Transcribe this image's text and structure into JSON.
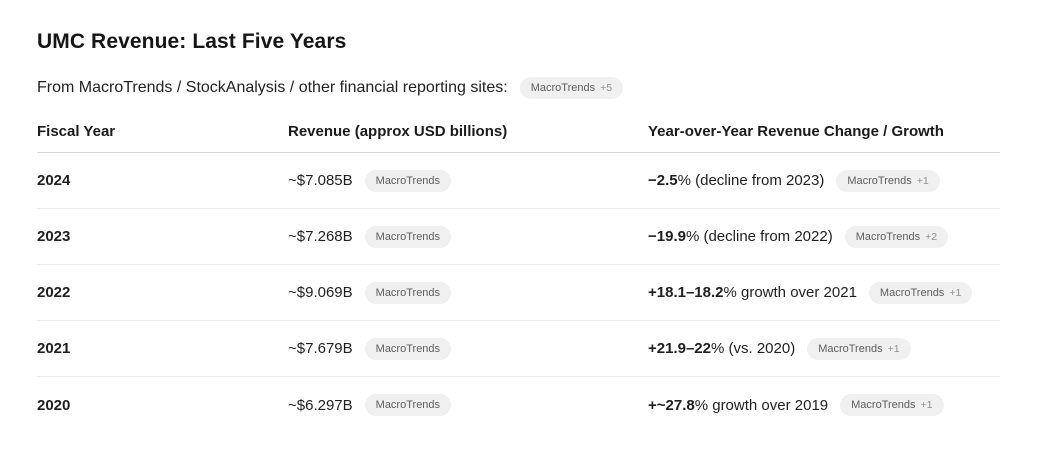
{
  "header": {
    "title": "UMC Revenue: Last Five Years",
    "subtitle": "From MacroTrends / StockAnalysis / other financial reporting sites:",
    "citation": {
      "source": "MacroTrends",
      "extra": "+5"
    }
  },
  "table": {
    "columns": {
      "fiscal_year": "Fiscal Year",
      "revenue": "Revenue (approx USD billions)",
      "change": "Year-over-Year Revenue Change / Growth"
    },
    "rows": [
      {
        "year": "2024",
        "revenue": "~$7.085B",
        "revenue_citation": {
          "source": "MacroTrends",
          "extra": ""
        },
        "change_value": "−2.5",
        "change_text": "% (decline from 2023)",
        "change_citation": {
          "source": "MacroTrends",
          "extra": "+1"
        }
      },
      {
        "year": "2023",
        "revenue": "~$7.268B",
        "revenue_citation": {
          "source": "MacroTrends",
          "extra": ""
        },
        "change_value": "−19.9",
        "change_text": "% (decline from 2022)",
        "change_citation": {
          "source": "MacroTrends",
          "extra": "+2"
        }
      },
      {
        "year": "2022",
        "revenue": "~$9.069B",
        "revenue_citation": {
          "source": "MacroTrends",
          "extra": ""
        },
        "change_value": "+18.1–18.2",
        "change_text": "% growth over 2021",
        "change_citation": {
          "source": "MacroTrends",
          "extra": "+1"
        }
      },
      {
        "year": "2021",
        "revenue": "~$7.679B",
        "revenue_citation": {
          "source": "MacroTrends",
          "extra": ""
        },
        "change_value": "+21.9–22",
        "change_text": "% (vs. 2020)",
        "change_citation": {
          "source": "MacroTrends",
          "extra": "+1"
        }
      },
      {
        "year": "2020",
        "revenue": "~$6.297B",
        "revenue_citation": {
          "source": "MacroTrends",
          "extra": ""
        },
        "change_value": "+~27.8",
        "change_text": "% growth over 2019",
        "change_citation": {
          "source": "MacroTrends",
          "extra": "+1"
        }
      }
    ]
  },
  "colors": {
    "text": "#1a1a1a",
    "pill_bg": "#f0f0f0",
    "pill_text": "#5e5e5e",
    "header_divider": "#d7d7d7",
    "row_divider": "#ededed"
  }
}
